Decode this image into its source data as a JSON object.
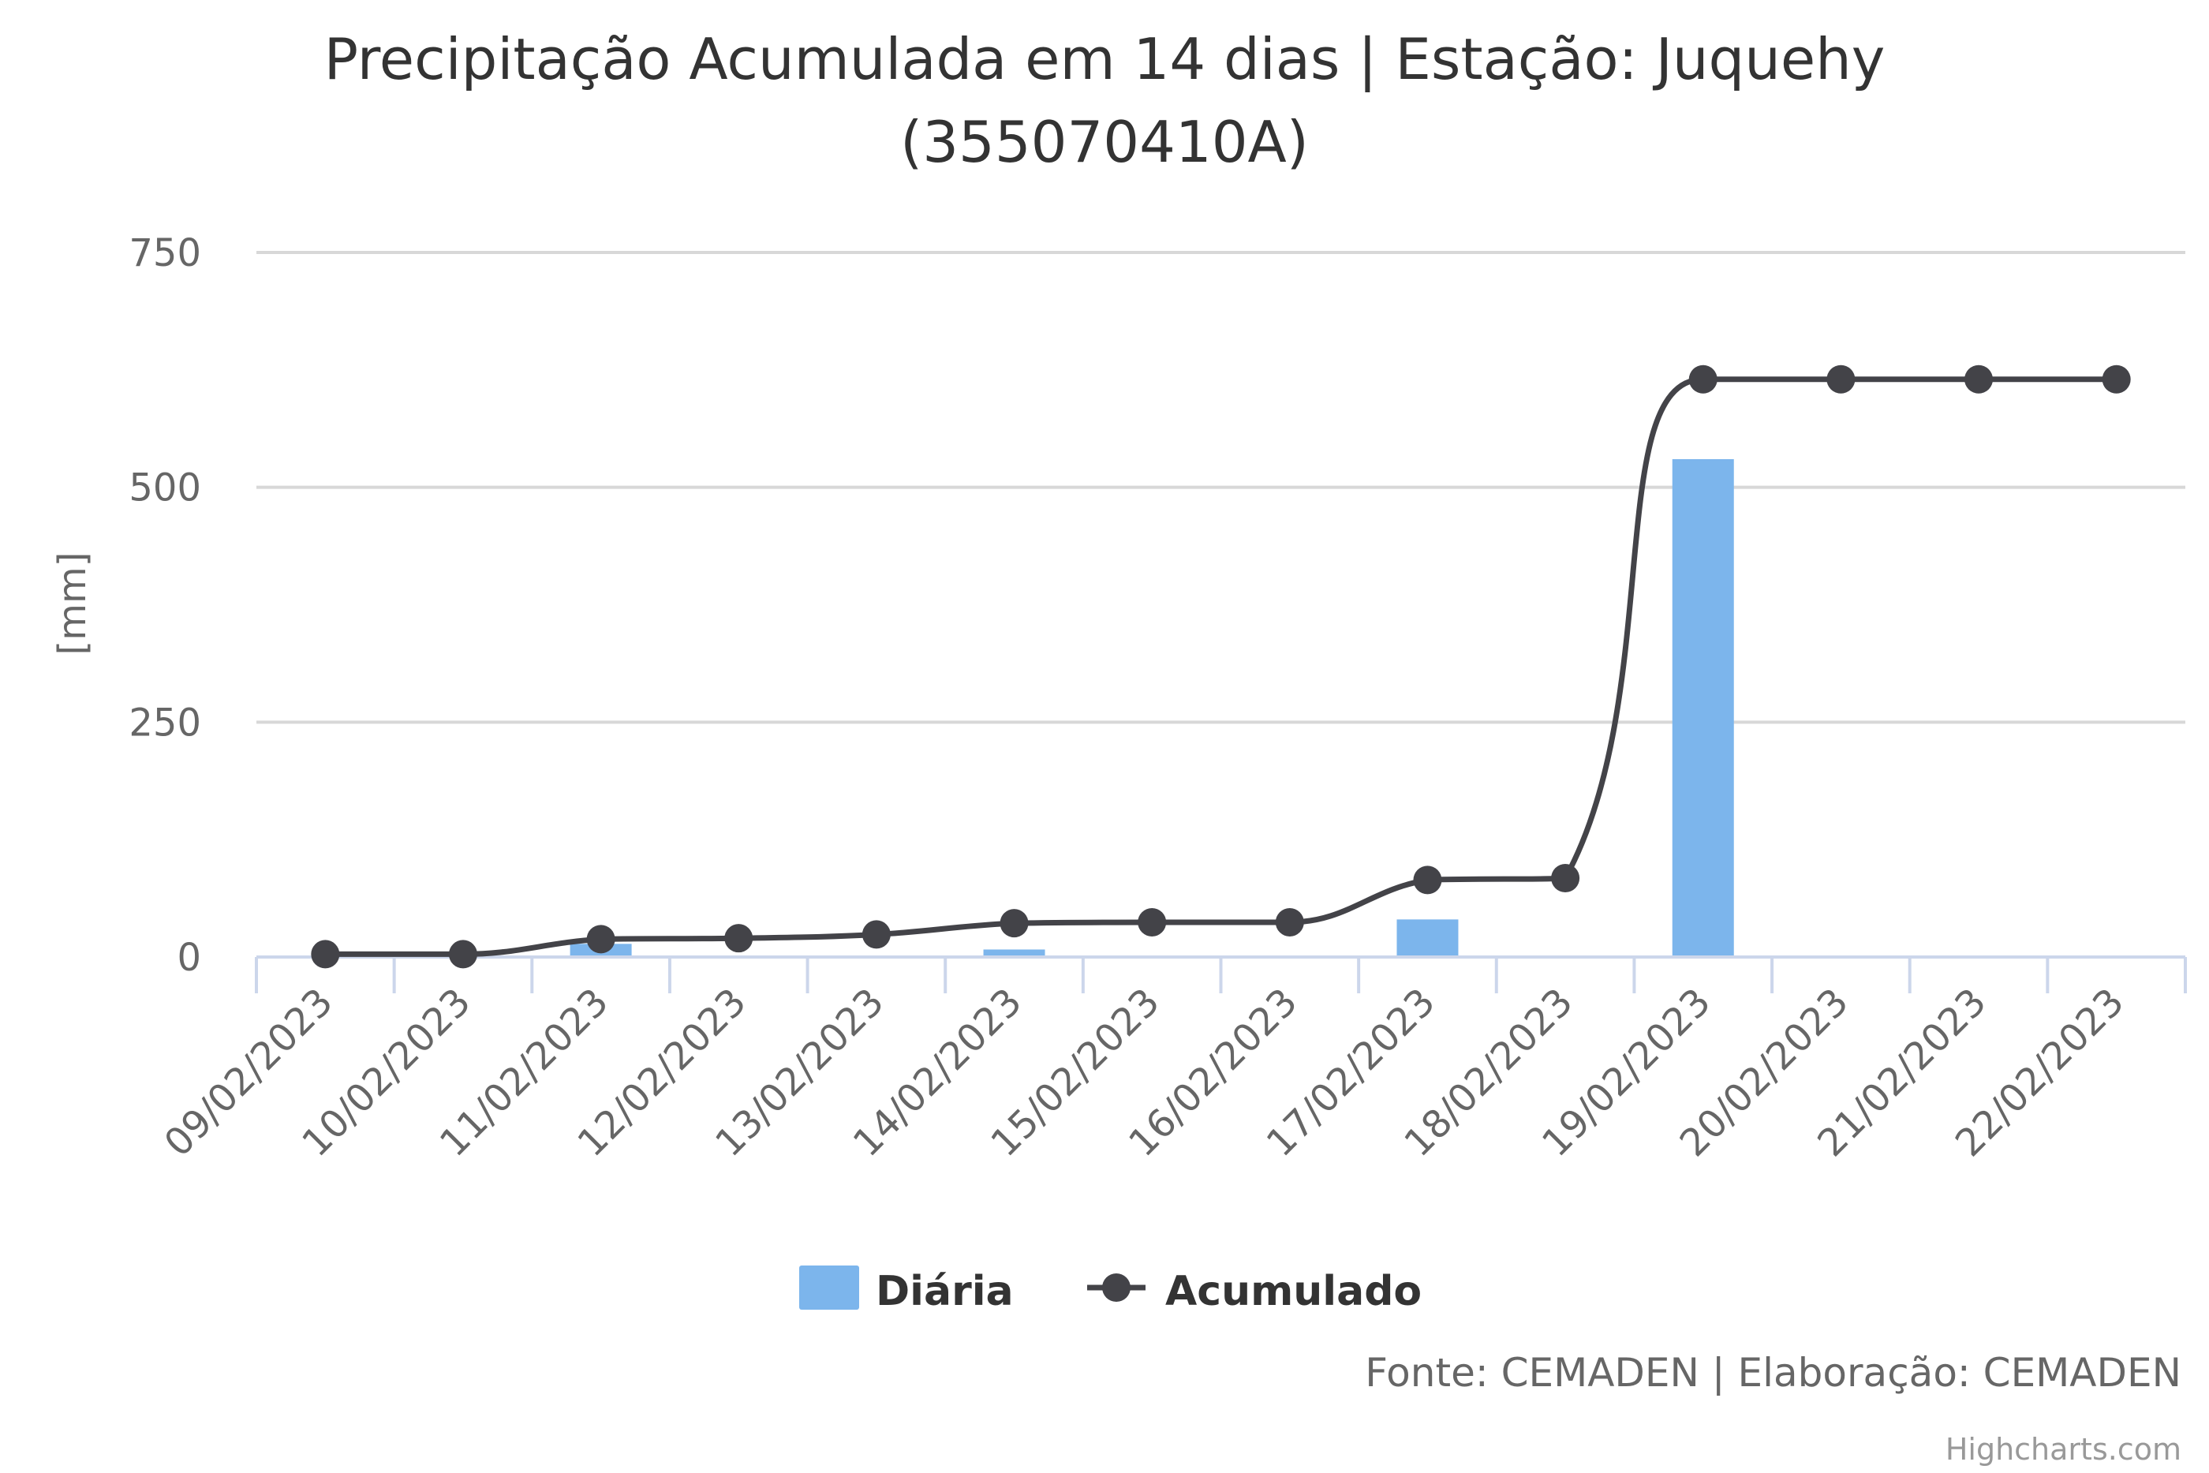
{
  "chart_data": {
    "type": "bar",
    "title": "Precipitação Acumulada em 14 dias | Estação: Juquehy (355070410A)",
    "title_lines": [
      "Precipitação Acumulada em 14 dias | Estação: Juquehy",
      "(355070410A)"
    ],
    "ylabel": "[mm]",
    "xlabel": "",
    "ylim": [
      0,
      750
    ],
    "yticks": [
      "0",
      "250",
      "500",
      "750"
    ],
    "ytick_values": [
      0,
      250,
      500,
      750
    ],
    "grid": true,
    "legend_position": "bottom-center",
    "categories": [
      "09/02/2023",
      "10/02/2023",
      "11/02/2023",
      "12/02/2023",
      "13/02/2023",
      "14/02/2023",
      "15/02/2023",
      "16/02/2023",
      "17/02/2023",
      "18/02/2023",
      "19/02/2023",
      "20/02/2023",
      "21/02/2023",
      "22/02/2023"
    ],
    "series": [
      {
        "name": "Diária",
        "type": "bar",
        "color": "#7cb5ec",
        "values": [
          0,
          0,
          14,
          0,
          0,
          8,
          0,
          0,
          40,
          0,
          530,
          0,
          0,
          0
        ]
      },
      {
        "name": "Acumulado",
        "type": "line",
        "color": "#434348",
        "values": [
          3,
          3,
          19,
          20,
          24,
          36,
          37,
          37,
          82,
          84,
          615,
          615,
          615,
          615
        ]
      }
    ],
    "credits": "Fonte: CEMADEN | Elaboração: CEMADEN",
    "watermark": "Highcharts.com"
  }
}
